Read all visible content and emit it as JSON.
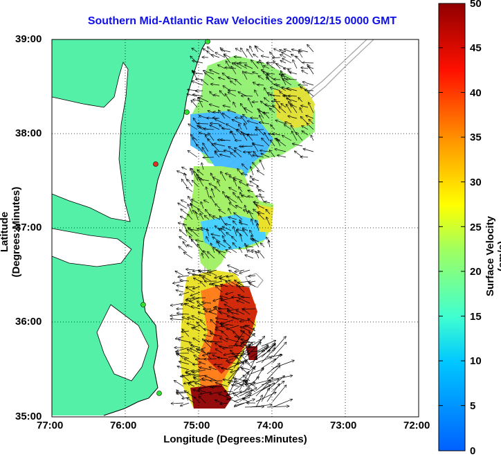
{
  "title": "Southern Mid-Atlantic Raw Velocities 2009/12/15 0000 GMT",
  "xlabel": "Longitude (Degrees:Minutes)",
  "ylabel": "Latitude (Degrees:Minutes)",
  "colorbar": {
    "label": "Surface Velocity (cm/s)",
    "ticks": [
      "0",
      "5",
      "10",
      "15",
      "20",
      "25",
      "30",
      "35",
      "40",
      "45",
      "50"
    ],
    "range": [
      0,
      50
    ]
  },
  "x_ticks": [
    "77:00",
    "76:00",
    "75:00",
    "74:00",
    "73:00",
    "72:00"
  ],
  "y_ticks": [
    "39:00",
    "38:00",
    "37:00",
    "36:00",
    "35:00"
  ],
  "colors": {
    "land": "#55f0a8",
    "title": "#1010e8",
    "grid": "#000000"
  }
}
